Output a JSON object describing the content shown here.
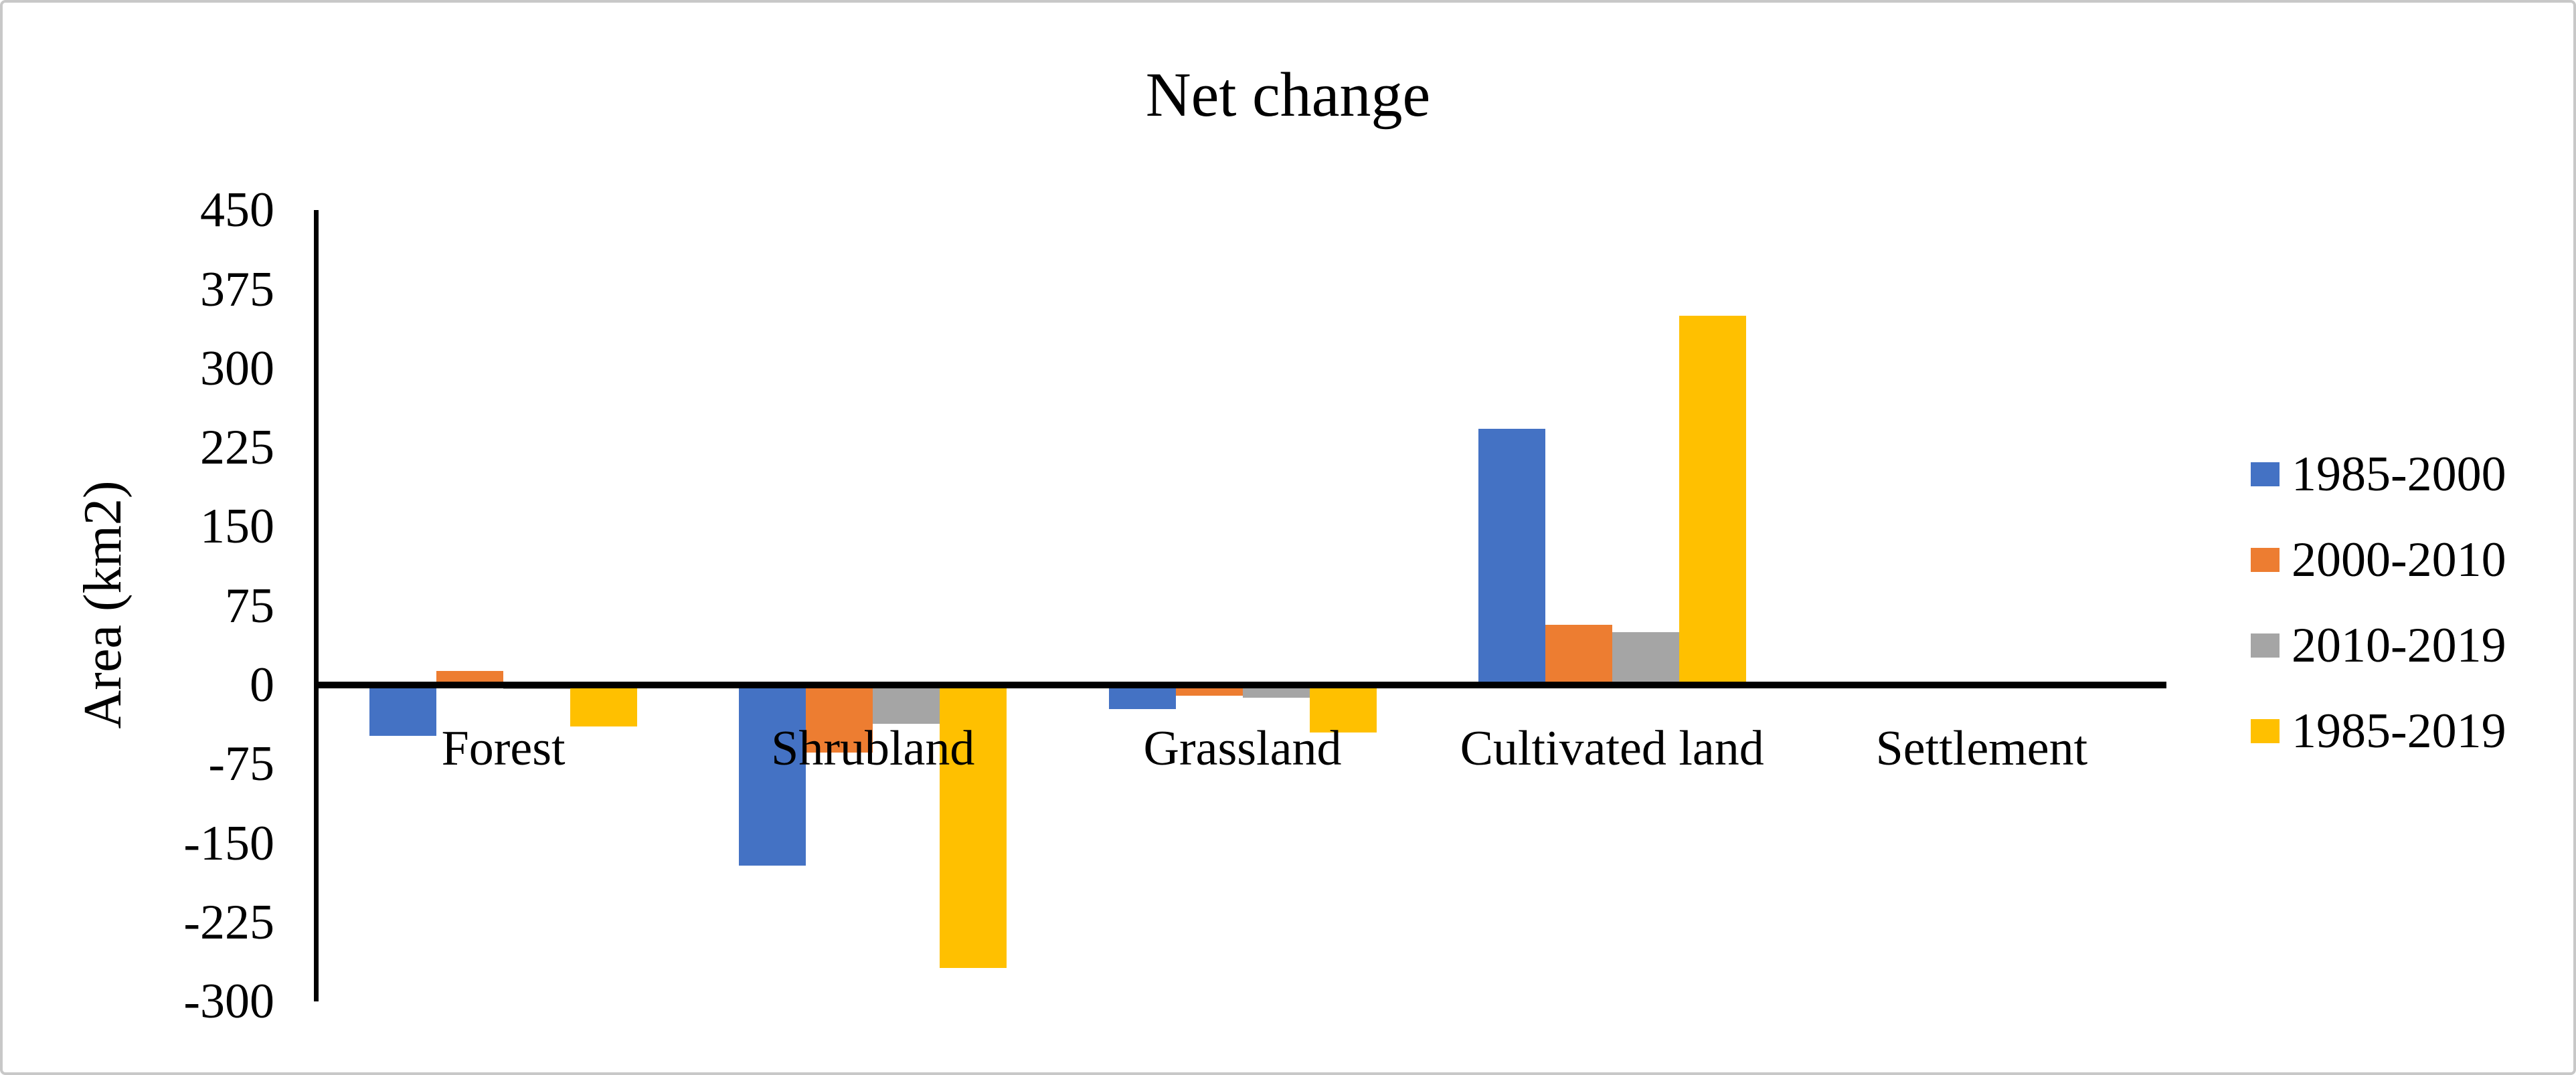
{
  "chart_data": {
    "type": "bar",
    "title": "Net change",
    "ylabel": "Area (km2)",
    "categories": [
      "Forest",
      "Shrubland",
      "Grassland",
      "Cultivated land",
      "Settlement"
    ],
    "series": [
      {
        "name": "1985-2000",
        "color": "#4472C4",
        "values": [
          -48,
          -171,
          -23,
          243,
          0
        ]
      },
      {
        "name": "2000-2010",
        "color": "#ED7D31",
        "values": [
          13,
          -64,
          -10,
          57,
          0
        ]
      },
      {
        "name": "2010-2019",
        "color": "#A5A5A5",
        "values": [
          -4,
          -37,
          -12,
          50,
          0
        ]
      },
      {
        "name": "1985-2019",
        "color": "#FFC000",
        "values": [
          -39,
          -268,
          -45,
          350,
          0
        ]
      }
    ],
    "yticks": [
      450,
      375,
      300,
      225,
      150,
      75,
      0,
      -75,
      -150,
      -225,
      -300
    ],
    "ylim": [
      -300,
      450
    ],
    "ytick_step": 75,
    "grid": false,
    "legend_position": "right",
    "axis_color": "#000000",
    "text_color": "#000000",
    "border_color": "#c8c8c8"
  }
}
